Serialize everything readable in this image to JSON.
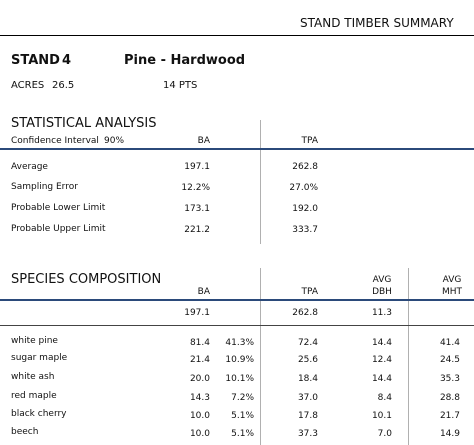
{
  "report": {
    "title": "STAND TIMBER SUMMARY",
    "stand_label": "STAND",
    "stand_number": "4",
    "stand_type": "Pine - Hardwood",
    "acres_label": "ACRES",
    "acres_value": "26.5",
    "points": "14 PTS"
  },
  "stats": {
    "heading": "STATISTICAL ANALYSIS",
    "ci_label": "Confidence Interval",
    "ci_value": "90%",
    "columns": [
      "BA",
      "TPA"
    ],
    "rows": [
      {
        "label": "Average",
        "ba": "197.1",
        "tpa": "262.8"
      },
      {
        "label": "Sampling Error",
        "ba": "12.2%",
        "tpa": "27.0%"
      },
      {
        "label": "Probable Lower Limit",
        "ba": "173.1",
        "tpa": "192.0"
      },
      {
        "label": "Probable Upper Limit",
        "ba": "221.2",
        "tpa": "333.7"
      }
    ]
  },
  "species": {
    "heading": "SPECIES COMPOSITION",
    "col_ba": "BA",
    "col_tpa": "TPA",
    "col_dbh_top": "AVG",
    "col_dbh_bottom": "DBH",
    "col_mht_top": "AVG",
    "col_mht_bottom": "MHT",
    "totals": {
      "ba": "197.1",
      "tpa": "262.8",
      "dbh": "11.3"
    },
    "rows": [
      {
        "name": "white pine",
        "ba": "81.4",
        "pct": "41.3%",
        "tpa": "72.4",
        "dbh": "14.4",
        "mht": "41.4"
      },
      {
        "name": "sugar maple",
        "ba": "21.4",
        "pct": "10.9%",
        "tpa": "25.6",
        "dbh": "12.4",
        "mht": "24.5"
      },
      {
        "name": "white ash",
        "ba": "20.0",
        "pct": "10.1%",
        "tpa": "18.4",
        "dbh": "14.4",
        "mht": "35.3"
      },
      {
        "name": "red maple",
        "ba": "14.3",
        "pct": "7.2%",
        "tpa": "37.0",
        "dbh": "8.4",
        "mht": "28.8"
      },
      {
        "name": "black cherry",
        "ba": "10.0",
        "pct": "5.1%",
        "tpa": "17.8",
        "dbh": "10.1",
        "mht": "21.7"
      },
      {
        "name": "beech",
        "ba": "10.0",
        "pct": "5.1%",
        "tpa": "37.3",
        "dbh": "7.0",
        "mht": "14.9"
      }
    ]
  }
}
